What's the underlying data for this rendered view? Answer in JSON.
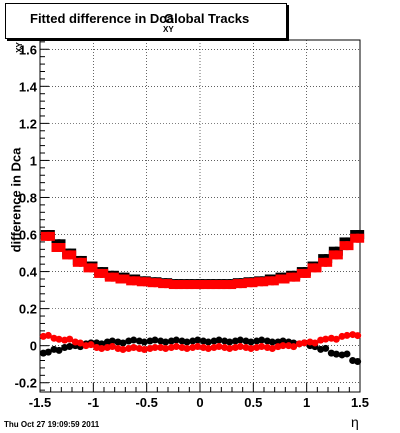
{
  "chart_data": {
    "type": "scatter",
    "title_main": "Fitted difference in Dca",
    "title_sub": "XY",
    "title_tail": "Global Tracks",
    "ylabel": "difference in Dca",
    "ylabel_sub": "XY",
    "xlabel": "η",
    "xlim": [
      -1.5,
      1.5
    ],
    "ylim": [
      -0.25,
      1.65
    ],
    "xticks": [
      -1.5,
      -1,
      -0.5,
      0,
      0.5,
      1,
      1.5
    ],
    "xtick_labels": [
      "-1.5",
      "-1",
      "-0.5",
      "0",
      "0.5",
      "1",
      "1.5"
    ],
    "yticks": [
      -0.2,
      0,
      0.2,
      0.4,
      0.6,
      0.8,
      1,
      1.2,
      1.4,
      1.6
    ],
    "ytick_labels": [
      "-0.2",
      "0",
      "0.2",
      "0.4",
      "0.6",
      "0.8",
      "1",
      "1.2",
      "1.4",
      "1.6"
    ],
    "grid": true,
    "series": [
      {
        "color": "#000000",
        "marker": "square",
        "x": [
          -1.45,
          -1.35,
          -1.25,
          -1.15,
          -1.05,
          -0.95,
          -0.85,
          -0.75,
          -0.65,
          -0.55,
          -0.45,
          -0.35,
          -0.25,
          -0.15,
          -0.05,
          0.05,
          0.15,
          0.25,
          0.35,
          0.45,
          0.55,
          0.65,
          0.75,
          0.85,
          0.95,
          1.05,
          1.15,
          1.25,
          1.35,
          1.45
        ],
        "y": [
          0.6,
          0.55,
          0.5,
          0.46,
          0.43,
          0.4,
          0.38,
          0.37,
          0.36,
          0.35,
          0.345,
          0.34,
          0.335,
          0.335,
          0.335,
          0.335,
          0.335,
          0.335,
          0.34,
          0.345,
          0.35,
          0.36,
          0.37,
          0.38,
          0.4,
          0.43,
          0.47,
          0.51,
          0.56,
          0.6
        ]
      },
      {
        "color": "#ff0000",
        "marker": "square",
        "x": [
          -1.45,
          -1.35,
          -1.25,
          -1.15,
          -1.05,
          -0.95,
          -0.85,
          -0.75,
          -0.65,
          -0.55,
          -0.45,
          -0.35,
          -0.25,
          -0.15,
          -0.05,
          0.05,
          0.15,
          0.25,
          0.35,
          0.45,
          0.55,
          0.65,
          0.75,
          0.85,
          0.95,
          1.05,
          1.15,
          1.25,
          1.35,
          1.45
        ],
        "y": [
          0.59,
          0.53,
          0.49,
          0.45,
          0.42,
          0.39,
          0.37,
          0.36,
          0.35,
          0.345,
          0.34,
          0.335,
          0.33,
          0.33,
          0.33,
          0.33,
          0.33,
          0.33,
          0.335,
          0.34,
          0.345,
          0.35,
          0.36,
          0.37,
          0.39,
          0.42,
          0.45,
          0.49,
          0.54,
          0.58
        ]
      },
      {
        "color": "#000000",
        "marker": "circle",
        "x": [
          -1.45,
          -1.35,
          -1.25,
          -1.15,
          -1.05,
          -0.95,
          -0.85,
          -0.75,
          -0.65,
          -0.55,
          -0.45,
          -0.35,
          -0.25,
          -0.15,
          -0.05,
          0.05,
          0.15,
          0.25,
          0.35,
          0.45,
          0.55,
          0.65,
          0.75,
          0.85,
          0.95,
          1.05,
          1.15,
          1.25,
          1.35,
          1.45
        ],
        "y": [
          -0.04,
          -0.02,
          -0.01,
          0.0,
          0.01,
          0.015,
          0.02,
          0.02,
          0.025,
          0.025,
          0.025,
          0.025,
          0.025,
          0.025,
          0.025,
          0.025,
          0.025,
          0.025,
          0.025,
          0.025,
          0.025,
          0.025,
          0.02,
          0.02,
          0.01,
          0.0,
          -0.02,
          -0.04,
          -0.05,
          -0.08
        ]
      },
      {
        "color": "#ff0000",
        "marker": "circle",
        "x": [
          -1.45,
          -1.35,
          -1.25,
          -1.15,
          -1.05,
          -0.95,
          -0.85,
          -0.75,
          -0.65,
          -0.55,
          -0.45,
          -0.35,
          -0.25,
          -0.15,
          -0.05,
          0.05,
          0.15,
          0.25,
          0.35,
          0.45,
          0.55,
          0.65,
          0.75,
          0.85,
          0.95,
          1.05,
          1.15,
          1.25,
          1.35,
          1.45
        ],
        "y": [
          0.05,
          0.04,
          0.03,
          0.02,
          0.0,
          -0.01,
          -0.01,
          -0.015,
          -0.015,
          -0.015,
          -0.015,
          -0.01,
          -0.01,
          -0.01,
          -0.01,
          -0.01,
          -0.01,
          -0.01,
          -0.01,
          -0.01,
          -0.01,
          -0.01,
          -0.005,
          0.0,
          0.01,
          0.02,
          0.03,
          0.04,
          0.05,
          0.06
        ]
      }
    ]
  },
  "timestamp": "Thu Oct 27 19:09:59 2011"
}
